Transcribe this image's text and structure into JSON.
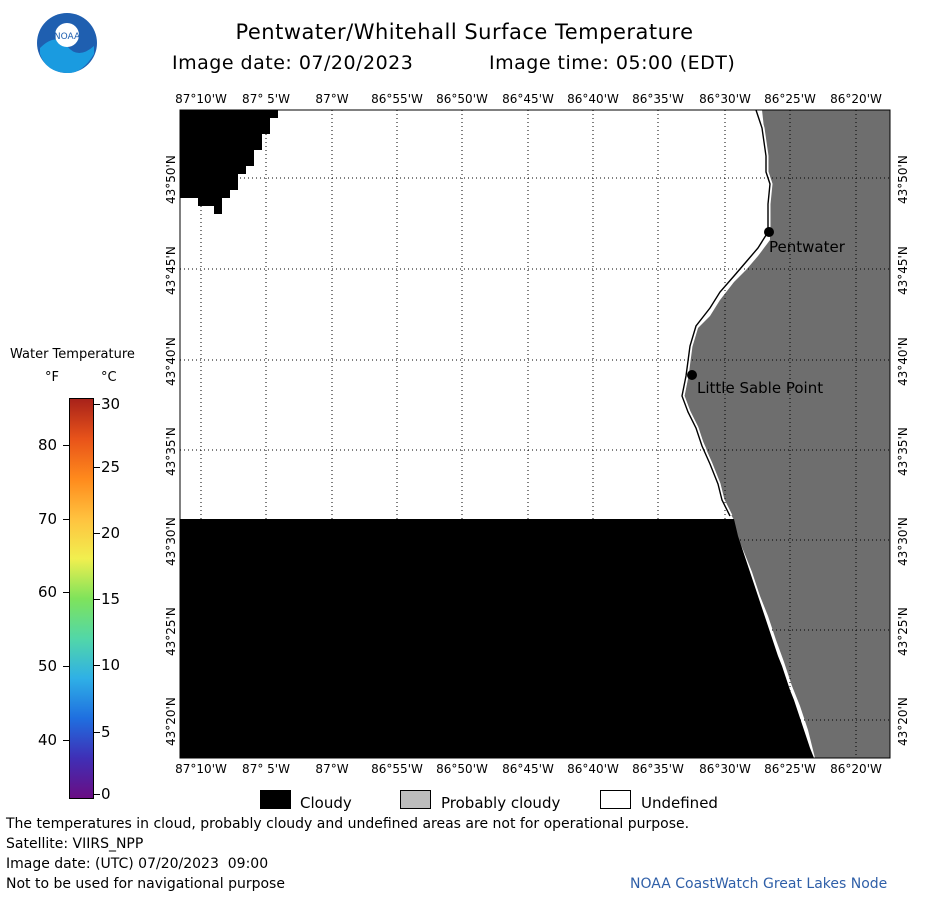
{
  "title": "Pentwater/Whitehall Surface Temperature",
  "image_date_label": "Image date: 07/20/2023",
  "image_time_label": "Image time: 05:00 (EDT)",
  "logo_text": "NOAA",
  "lon_labels": [
    "87°10'W",
    "87° 5'W",
    "87°W",
    "86°55'W",
    "86°50'W",
    "86°45'W",
    "86°40'W",
    "86°35'W",
    "86°30'W",
    "86°25'W",
    "86°20'W"
  ],
  "lat_labels": [
    "43°50'N",
    "43°45'N",
    "43°40'N",
    "43°35'N",
    "43°30'N",
    "43°25'N",
    "43°20'N"
  ],
  "places": {
    "pentwater": "Pentwater",
    "little_sable": "Little Sable Point"
  },
  "color_scale": {
    "title": "Water Temperature",
    "unit_f": "°F",
    "unit_c": "°C",
    "f_ticks": [
      "80",
      "70",
      "60",
      "50",
      "40"
    ],
    "c_ticks": [
      "30",
      "25",
      "20",
      "15",
      "10",
      "5",
      "0"
    ],
    "colors": [
      "#6a0d83",
      "#3f2fb6",
      "#1f6fe0",
      "#2fb0e6",
      "#52d7a8",
      "#7fe35b",
      "#f1ef4f",
      "#ffc23f",
      "#ff8a1c",
      "#e8531a",
      "#a8221a"
    ]
  },
  "legend": {
    "cloudy": "Cloudy",
    "probably_cloudy": "Probably cloudy",
    "undefined": "Undefined",
    "colors": {
      "cloudy": "#000000",
      "probably_cloudy": "#bdbdbd",
      "undefined": "#ffffff",
      "land": "#6e6e6e"
    }
  },
  "footer": {
    "line1": "The temperatures in cloud, probably cloudy and undefined areas are not for operational purpose.",
    "line2": "Satellite: VIIRS_NPP",
    "line3": "Image date: (UTC) 07/20/2023  09:00",
    "line4": "Not to be used for navigational purpose",
    "credit": "NOAA CoastWatch Great Lakes Node"
  }
}
